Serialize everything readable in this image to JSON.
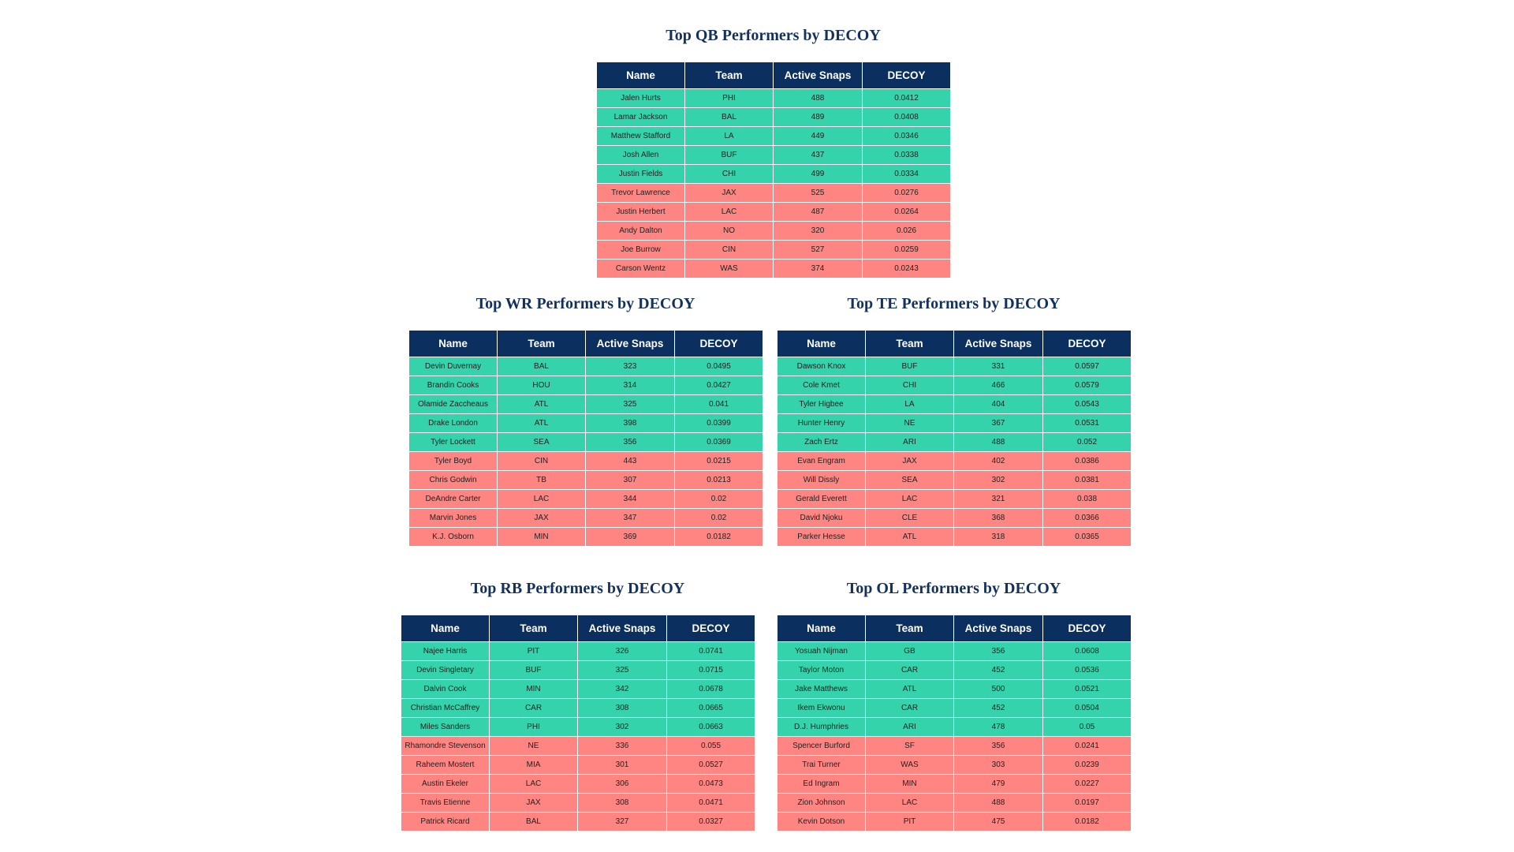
{
  "colors": {
    "header": "#0b2f5e",
    "title": "#13315c",
    "top_rows": "#34d3ab",
    "bottom_rows": "#fe8582"
  },
  "chart_data": [
    {
      "type": "table",
      "title": "Top QB Performers by DECOY",
      "columns": [
        "Name",
        "Team",
        "Active Snaps",
        "DECOY"
      ],
      "rows": [
        [
          "Jalen Hurts",
          "PHI",
          "488",
          "0.0412"
        ],
        [
          "Lamar Jackson",
          "BAL",
          "489",
          "0.0408"
        ],
        [
          "Matthew Stafford",
          "LA",
          "449",
          "0.0346"
        ],
        [
          "Josh Allen",
          "BUF",
          "437",
          "0.0338"
        ],
        [
          "Justin Fields",
          "CHI",
          "499",
          "0.0334"
        ],
        [
          "Trevor Lawrence",
          "JAX",
          "525",
          "0.0276"
        ],
        [
          "Justin Herbert",
          "LAC",
          "487",
          "0.0264"
        ],
        [
          "Andy Dalton",
          "NO",
          "320",
          "0.026"
        ],
        [
          "Joe Burrow",
          "CIN",
          "527",
          "0.0259"
        ],
        [
          "Carson Wentz",
          "WAS",
          "374",
          "0.0243"
        ]
      ]
    },
    {
      "type": "table",
      "title": "Top WR Performers by DECOY",
      "columns": [
        "Name",
        "Team",
        "Active Snaps",
        "DECOY"
      ],
      "rows": [
        [
          "Devin Duvernay",
          "BAL",
          "323",
          "0.0495"
        ],
        [
          "Brandin Cooks",
          "HOU",
          "314",
          "0.0427"
        ],
        [
          "Olamide Zaccheaus",
          "ATL",
          "325",
          "0.041"
        ],
        [
          "Drake London",
          "ATL",
          "398",
          "0.0399"
        ],
        [
          "Tyler Lockett",
          "SEA",
          "356",
          "0.0369"
        ],
        [
          "Tyler Boyd",
          "CIN",
          "443",
          "0.0215"
        ],
        [
          "Chris Godwin",
          "TB",
          "307",
          "0.0213"
        ],
        [
          "DeAndre Carter",
          "LAC",
          "344",
          "0.02"
        ],
        [
          "Marvin Jones",
          "JAX",
          "347",
          "0.02"
        ],
        [
          "K.J. Osborn",
          "MIN",
          "369",
          "0.0182"
        ]
      ]
    },
    {
      "type": "table",
      "title": "Top TE Performers by DECOY",
      "columns": [
        "Name",
        "Team",
        "Active Snaps",
        "DECOY"
      ],
      "rows": [
        [
          "Dawson Knox",
          "BUF",
          "331",
          "0.0597"
        ],
        [
          "Cole Kmet",
          "CHI",
          "466",
          "0.0579"
        ],
        [
          "Tyler Higbee",
          "LA",
          "404",
          "0.0543"
        ],
        [
          "Hunter Henry",
          "NE",
          "367",
          "0.0531"
        ],
        [
          "Zach Ertz",
          "ARI",
          "488",
          "0.052"
        ],
        [
          "Evan Engram",
          "JAX",
          "402",
          "0.0386"
        ],
        [
          "Will Dissly",
          "SEA",
          "302",
          "0.0381"
        ],
        [
          "Gerald Everett",
          "LAC",
          "321",
          "0.038"
        ],
        [
          "David Njoku",
          "CLE",
          "368",
          "0.0366"
        ],
        [
          "Parker Hesse",
          "ATL",
          "318",
          "0.0365"
        ]
      ]
    },
    {
      "type": "table",
      "title": "Top RB Performers by DECOY",
      "columns": [
        "Name",
        "Team",
        "Active Snaps",
        "DECOY"
      ],
      "rows": [
        [
          "Najee Harris",
          "PIT",
          "326",
          "0.0741"
        ],
        [
          "Devin Singletary",
          "BUF",
          "325",
          "0.0715"
        ],
        [
          "Dalvin Cook",
          "MIN",
          "342",
          "0.0678"
        ],
        [
          "Christian McCaffrey",
          "CAR",
          "308",
          "0.0665"
        ],
        [
          "Miles Sanders",
          "PHI",
          "302",
          "0.0663"
        ],
        [
          "Rhamondre Stevenson",
          "NE",
          "336",
          "0.055"
        ],
        [
          "Raheem Mostert",
          "MIA",
          "301",
          "0.0527"
        ],
        [
          "Austin Ekeler",
          "LAC",
          "306",
          "0.0473"
        ],
        [
          "Travis Etienne",
          "JAX",
          "308",
          "0.0471"
        ],
        [
          "Patrick Ricard",
          "BAL",
          "327",
          "0.0327"
        ]
      ]
    },
    {
      "type": "table",
      "title": "Top OL Performers by DECOY",
      "columns": [
        "Name",
        "Team",
        "Active Snaps",
        "DECOY"
      ],
      "rows": [
        [
          "Yosuah Nijman",
          "GB",
          "356",
          "0.0608"
        ],
        [
          "Taylor Moton",
          "CAR",
          "452",
          "0.0536"
        ],
        [
          "Jake Matthews",
          "ATL",
          "500",
          "0.0521"
        ],
        [
          "Ikem Ekwonu",
          "CAR",
          "452",
          "0.0504"
        ],
        [
          "D.J. Humphries",
          "ARI",
          "478",
          "0.05"
        ],
        [
          "Spencer Burford",
          "SF",
          "356",
          "0.0241"
        ],
        [
          "Trai Turner",
          "WAS",
          "303",
          "0.0239"
        ],
        [
          "Ed Ingram",
          "MIN",
          "479",
          "0.0227"
        ],
        [
          "Zion Johnson",
          "LAC",
          "488",
          "0.0197"
        ],
        [
          "Kevin Dotson",
          "PIT",
          "475",
          "0.0182"
        ]
      ]
    }
  ]
}
